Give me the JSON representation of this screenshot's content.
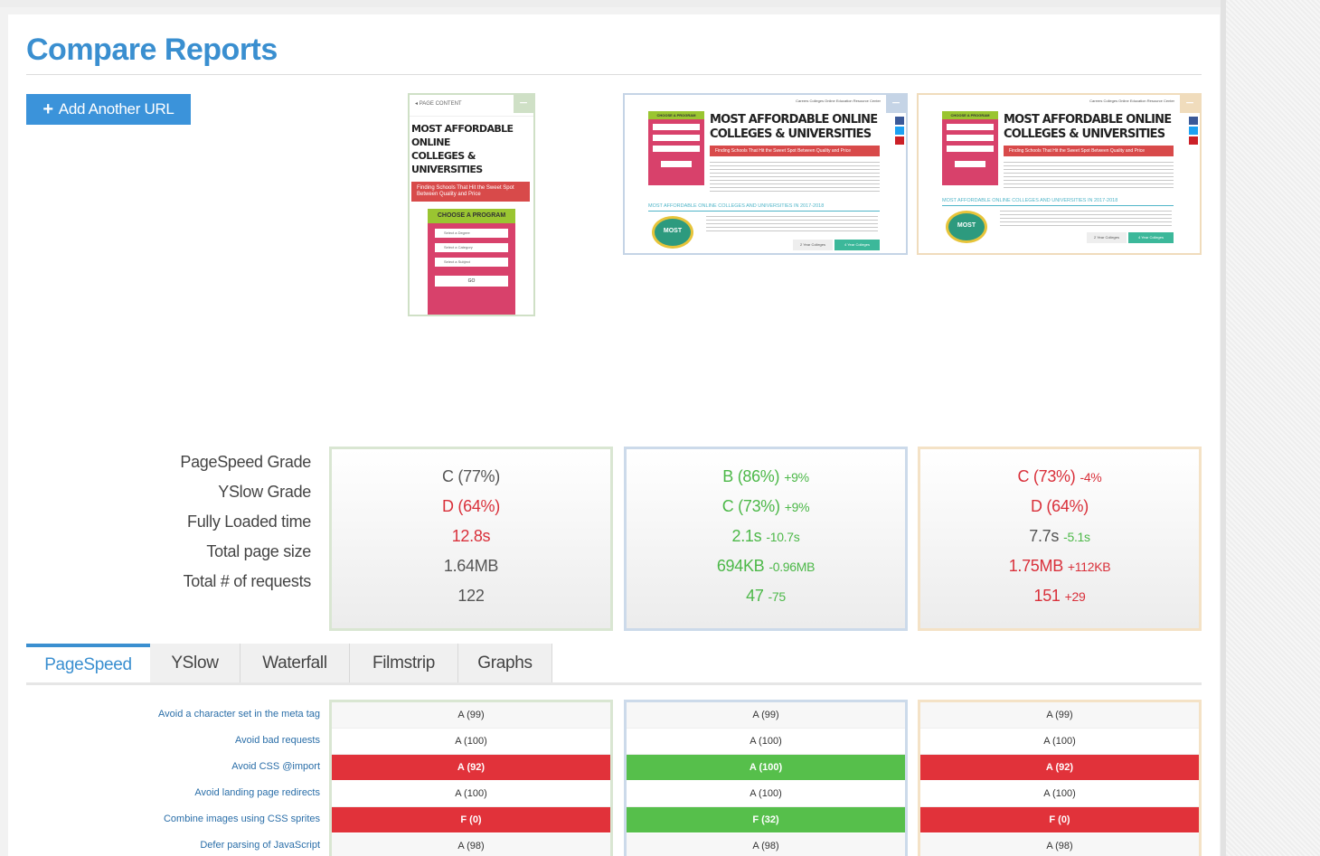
{
  "page": {
    "title": "Compare Reports",
    "add_url_label": "Add Another URL"
  },
  "thumbnails": {
    "mobile": {
      "header": "PAGE CONTENT",
      "title_line1": "MOST AFFORDABLE ONLINE",
      "title_line2": "COLLEGES & UNIVERSITIES",
      "banner": "Finding Schools That Hit the Sweet Spot Between Quality and Price",
      "form_header": "CHOOSE A PROGRAM",
      "selects": [
        "Select a Degree",
        "Select a Category",
        "Select a Subject"
      ],
      "go": "GO"
    },
    "desktop": {
      "nav": "Careers   Colleges   Online Education   Resource Center",
      "form_header": "CHOOSE A PROGRAM",
      "title_line1": "MOST AFFORDABLE ONLINE",
      "title_line2": "COLLEGES & UNIVERSITIES",
      "banner": "Finding Schools That Hit the Sweet Spot Between Quality and Price",
      "subtitle": "MOST AFFORDABLE ONLINE COLLEGES AND UNIVERSITIES IN 2017-2018",
      "badge": "MOST",
      "tab1": "2 Year Colleges",
      "tab2": "4 Year Colleges"
    }
  },
  "metrics": {
    "labels": [
      "PageSpeed Grade",
      "YSlow Grade",
      "Fully Loaded time",
      "Total page size",
      "Total # of requests"
    ],
    "columns": [
      {
        "cells": [
          {
            "value": "C (77%)",
            "delta": "",
            "color": "#555555"
          },
          {
            "value": "D (64%)",
            "delta": "",
            "color": "#d9303a"
          },
          {
            "value": "12.8s",
            "delta": "",
            "color": "#d9303a"
          },
          {
            "value": "1.64MB",
            "delta": "",
            "color": "#555555"
          },
          {
            "value": "122",
            "delta": "",
            "color": "#555555"
          }
        ]
      },
      {
        "cells": [
          {
            "value": "B (86%)",
            "delta": "+9%",
            "color": "#4cb848"
          },
          {
            "value": "C (73%)",
            "delta": "+9%",
            "color": "#4cb848"
          },
          {
            "value": "2.1s",
            "delta": "-10.7s",
            "color": "#4cb848"
          },
          {
            "value": "694KB",
            "delta": "-0.96MB",
            "color": "#4cb848"
          },
          {
            "value": "47",
            "delta": "-75",
            "color": "#4cb848"
          }
        ]
      },
      {
        "cells": [
          {
            "value": "C (73%)",
            "delta": "-4%",
            "color": "#d9303a"
          },
          {
            "value": "D (64%)",
            "delta": "",
            "color": "#d9303a"
          },
          {
            "value": "7.7s",
            "delta": "-5.1s",
            "color": "#555555",
            "delta_color": "#4cb848"
          },
          {
            "value": "1.75MB",
            "delta": "+112KB",
            "color": "#d9303a"
          },
          {
            "value": "151",
            "delta": "+29",
            "color": "#d9303a"
          }
        ]
      }
    ]
  },
  "tabs": [
    "PageSpeed",
    "YSlow",
    "Waterfall",
    "Filmstrip",
    "Graphs"
  ],
  "active_tab": "PageSpeed",
  "rules": {
    "labels": [
      "Avoid a character set in the meta tag",
      "Avoid bad requests",
      "Avoid CSS @import",
      "Avoid landing page redirects",
      "Combine images using CSS sprites",
      "Defer parsing of JavaScript"
    ],
    "columns": [
      [
        "A (99)",
        "A (100)",
        "A (92)",
        "A (100)",
        "F (0)",
        "A (98)"
      ],
      [
        "A (99)",
        "A (100)",
        "A (100)",
        "A (100)",
        "F (32)",
        "A (98)"
      ],
      [
        "A (99)",
        "A (100)",
        "A (92)",
        "A (100)",
        "F (0)",
        "A (98)"
      ]
    ],
    "states": [
      [
        "alt",
        "",
        "bad",
        "",
        "bad",
        "alt"
      ],
      [
        "alt",
        "",
        "good",
        "",
        "good",
        "alt"
      ],
      [
        "alt",
        "",
        "bad",
        "",
        "bad",
        "alt"
      ]
    ]
  },
  "colors": {
    "accent": "#3a8fd0",
    "good": "#4cb848",
    "bad": "#d9303a"
  }
}
